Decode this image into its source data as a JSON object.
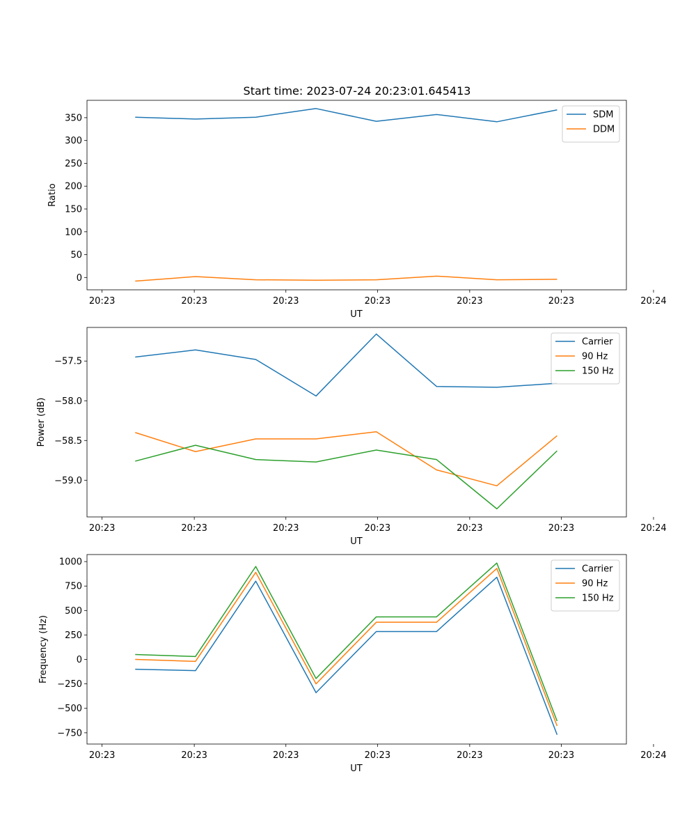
{
  "figure": {
    "title": "Start time: 2023-07-24 20:23:01.645413"
  },
  "chart_data": [
    {
      "type": "line",
      "title": "Start time: 2023-07-24 20:23:01.645413",
      "xlabel": "UT",
      "ylabel": "Ratio",
      "x": [
        1,
        2,
        3,
        4,
        5,
        6,
        7,
        8
      ],
      "xlim": [
        0.2,
        9.15
      ],
      "ylim": [
        -27,
        388
      ],
      "xticks": [
        0.45,
        1.98,
        3.5,
        5.02,
        6.55,
        8.07,
        9.6
      ],
      "xtick_labels": [
        "20:23",
        "20:23",
        "20:23",
        "20:23",
        "20:23",
        "20:23",
        "20:24"
      ],
      "yticks": [
        0,
        50,
        100,
        150,
        200,
        250,
        300,
        350
      ],
      "ytick_labels": [
        "0",
        "50",
        "100",
        "150",
        "200",
        "250",
        "300",
        "350"
      ],
      "legend": "top-right",
      "series": [
        {
          "name": "SDM",
          "color": "#1f77b4",
          "values": [
            351,
            347,
            351,
            370,
            342,
            357,
            341,
            367
          ]
        },
        {
          "name": "DDM",
          "color": "#ff7f0e",
          "values": [
            -8,
            2,
            -5,
            -6,
            -5,
            3,
            -5,
            -4
          ]
        }
      ]
    },
    {
      "type": "line",
      "xlabel": "UT",
      "ylabel": "Power (dB)",
      "x": [
        1,
        2,
        3,
        4,
        5,
        6,
        7,
        8
      ],
      "xlim": [
        0.2,
        9.15
      ],
      "ylim": [
        -59.462,
        -57.077
      ],
      "xticks": [
        0.45,
        1.98,
        3.5,
        5.02,
        6.55,
        8.07,
        9.6
      ],
      "xtick_labels": [
        "20:23",
        "20:23",
        "20:23",
        "20:23",
        "20:23",
        "20:23",
        "20:24"
      ],
      "yticks": [
        -57.5,
        -58.0,
        -58.5,
        -59.0
      ],
      "ytick_labels": [
        "−57.5",
        "−58.0",
        "−58.5",
        "−59.0"
      ],
      "legend": "top-right",
      "series": [
        {
          "name": "Carrier",
          "color": "#1f77b4",
          "values": [
            -57.45,
            -57.36,
            -57.48,
            -57.94,
            -57.16,
            -57.82,
            -57.83,
            -57.78
          ]
        },
        {
          "name": "90 Hz",
          "color": "#ff7f0e",
          "values": [
            -58.4,
            -58.64,
            -58.48,
            -58.48,
            -58.39,
            -58.87,
            -59.07,
            -58.44
          ]
        },
        {
          "name": "150 Hz",
          "color": "#2ca02c",
          "values": [
            -58.76,
            -58.56,
            -58.74,
            -58.77,
            -58.62,
            -58.74,
            -59.36,
            -58.63
          ]
        }
      ]
    },
    {
      "type": "line",
      "xlabel": "UT",
      "ylabel": "Frequency (Hz)",
      "x": [
        1,
        2,
        3,
        4,
        5,
        6,
        7,
        8
      ],
      "xlim": [
        0.2,
        9.15
      ],
      "ylim": [
        -865,
        1072
      ],
      "xticks": [
        0.45,
        1.98,
        3.5,
        5.02,
        6.55,
        8.07,
        9.6
      ],
      "xtick_labels": [
        "20:23",
        "20:23",
        "20:23",
        "20:23",
        "20:23",
        "20:23",
        "20:24"
      ],
      "yticks": [
        -750,
        -500,
        -250,
        0,
        250,
        500,
        750,
        1000
      ],
      "ytick_labels": [
        "−750",
        "−500",
        "−250",
        "0",
        "250",
        "500",
        "750",
        "1000"
      ],
      "legend": "top-right",
      "series": [
        {
          "name": "Carrier",
          "color": "#1f77b4",
          "values": [
            -100,
            -115,
            800,
            -340,
            285,
            285,
            840,
            -770
          ]
        },
        {
          "name": "90 Hz",
          "color": "#ff7f0e",
          "values": [
            0,
            -20,
            890,
            -250,
            380,
            380,
            930,
            -680
          ]
        },
        {
          "name": "150 Hz",
          "color": "#2ca02c",
          "values": [
            50,
            30,
            950,
            -195,
            435,
            435,
            985,
            -630
          ]
        }
      ]
    }
  ]
}
